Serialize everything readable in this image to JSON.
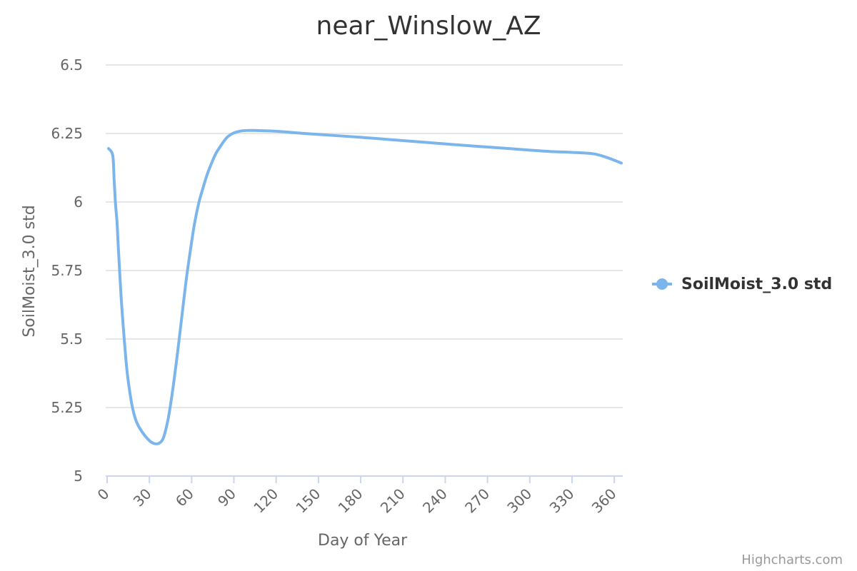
{
  "chart_data": {
    "type": "line",
    "title": "near_Winslow_AZ",
    "xlabel": "Day of Year",
    "ylabel": "SoilMoist_3.0 std",
    "xlim": [
      -1,
      366
    ],
    "ylim": [
      5,
      6.5
    ],
    "x_ticks": [
      0,
      30,
      60,
      90,
      120,
      150,
      180,
      210,
      240,
      270,
      300,
      330,
      360
    ],
    "y_ticks": [
      5,
      5.25,
      5.5,
      5.75,
      6,
      6.25,
      6.5
    ],
    "y_tick_labels": [
      "5",
      "5.25",
      "5.5",
      "5.75",
      "6",
      "6.25",
      "6.5"
    ],
    "grid": true,
    "legend_position": "right",
    "series": [
      {
        "name": "SoilMoist_3.0 std",
        "color": "#7cb5ec",
        "x": [
          1,
          4,
          5,
          6,
          7,
          8,
          10,
          12,
          14,
          16,
          18,
          20,
          22,
          25,
          28,
          31,
          34,
          37,
          40,
          43,
          45,
          47,
          50,
          53,
          56,
          59,
          62,
          65,
          68,
          71,
          74,
          77,
          80,
          85,
          90,
          95,
          100,
          105,
          110,
          120,
          140,
          160,
          180,
          200,
          220,
          240,
          260,
          280,
          300,
          315,
          330,
          345,
          355,
          365
        ],
        "y": [
          6.195,
          6.17,
          6.08,
          5.99,
          5.93,
          5.83,
          5.65,
          5.51,
          5.39,
          5.31,
          5.25,
          5.21,
          5.185,
          5.16,
          5.14,
          5.125,
          5.118,
          5.12,
          5.14,
          5.2,
          5.26,
          5.33,
          5.45,
          5.58,
          5.71,
          5.82,
          5.92,
          5.995,
          6.05,
          6.1,
          6.14,
          6.175,
          6.2,
          6.235,
          6.252,
          6.259,
          6.261,
          6.261,
          6.26,
          6.258,
          6.25,
          6.243,
          6.236,
          6.228,
          6.22,
          6.212,
          6.204,
          6.197,
          6.189,
          6.184,
          6.181,
          6.176,
          6.162,
          6.142
        ]
      }
    ],
    "credits": "Highcharts.com"
  }
}
